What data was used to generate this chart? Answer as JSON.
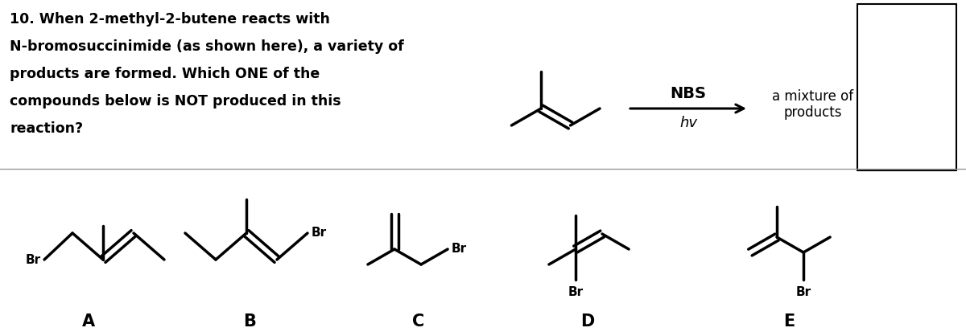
{
  "bg_color": "#ffffff",
  "line_color": "#000000",
  "lw": 2.5,
  "fontsize_question": 12.5,
  "fontsize_labels": 15,
  "fontsize_br": 11,
  "fontsize_nbs": 13,
  "question_lines": [
    "10. When 2-methyl-2-butene reacts with",
    "N-bromosuccinimide (as shown here), a variety of",
    "products are formed. Which ONE of the",
    "compounds below is NOT produced in this",
    "reaction?"
  ]
}
